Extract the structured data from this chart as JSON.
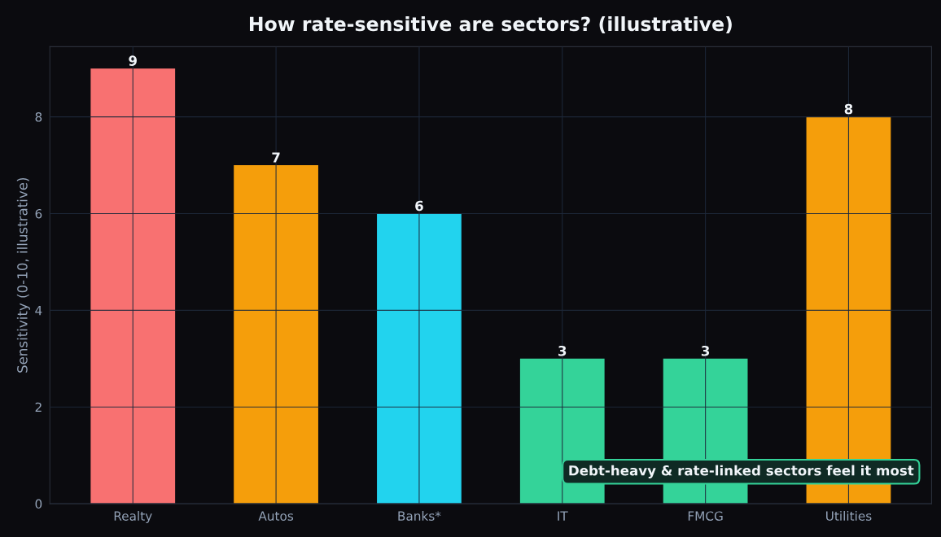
{
  "chart_data": {
    "type": "bar",
    "title": "How rate-sensitive are sectors? (illustrative)",
    "ylabel": "Sensitivity (0-10, illustrative)",
    "categories": [
      "Realty",
      "Autos",
      "Banks*",
      "IT",
      "FMCG",
      "Utilities"
    ],
    "values": [
      9,
      7,
      6,
      3,
      3,
      8
    ],
    "colors": [
      "#f87171",
      "#f59e0b",
      "#22d3ee",
      "#34d399",
      "#34d399",
      "#f59e0b"
    ],
    "ylim": [
      0,
      9.45
    ],
    "yticks": [
      0,
      2,
      4,
      6,
      8
    ],
    "grid": true,
    "data_labels": true,
    "legend": false,
    "annotations": [
      "Debt-heavy & rate-linked sectors feel it most"
    ]
  }
}
